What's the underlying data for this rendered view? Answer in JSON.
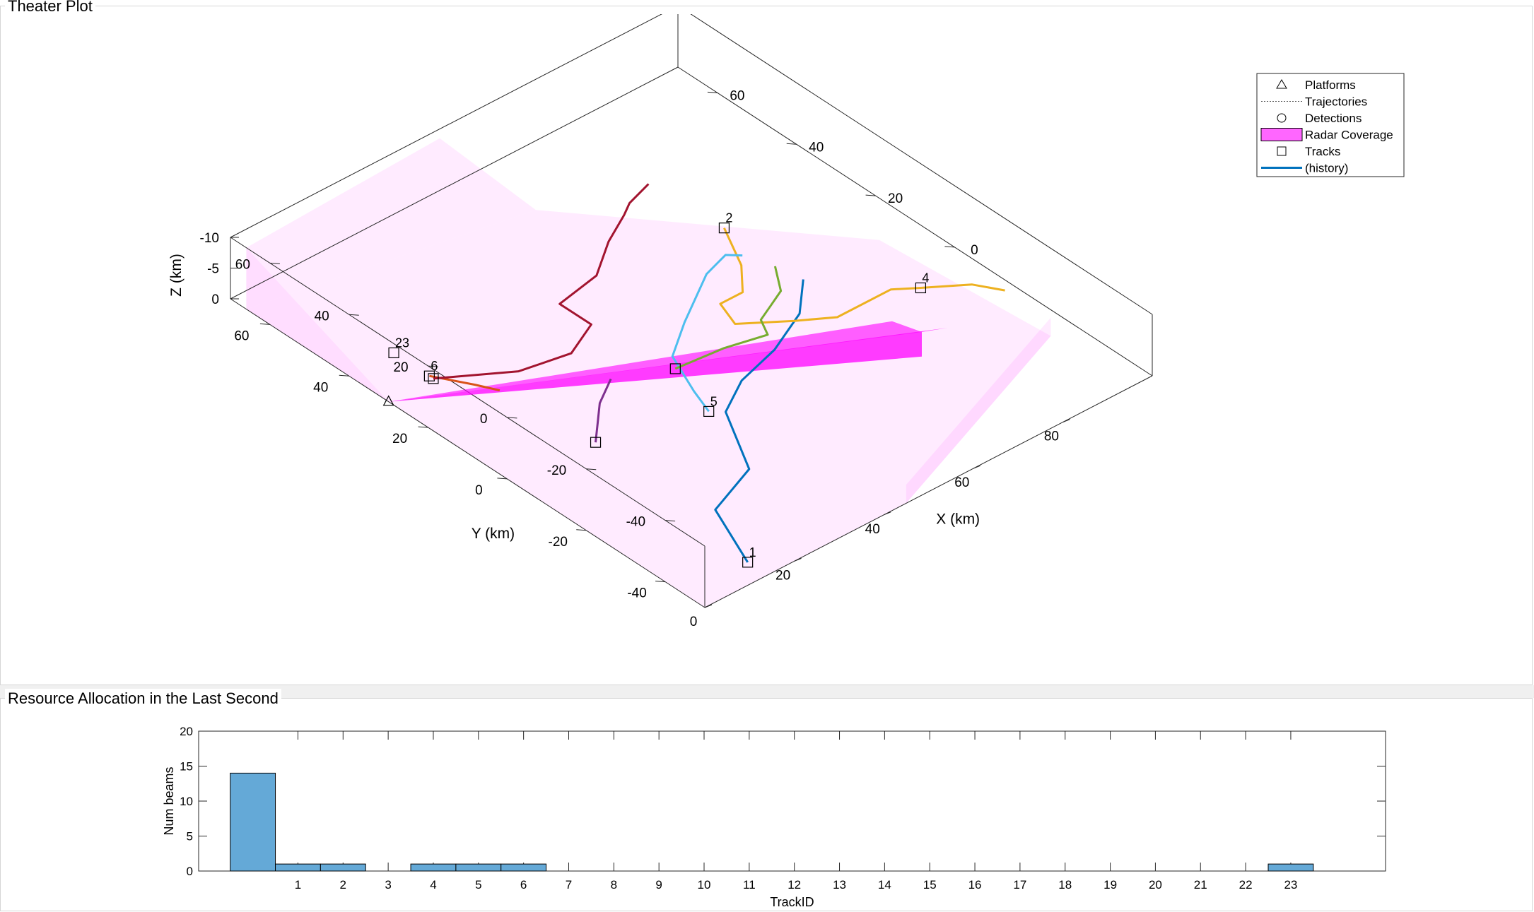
{
  "panels": {
    "theater_title": "Theater Plot",
    "resource_title": "Resource Allocation in the Last Second"
  },
  "colors": {
    "coverage_light": "#ff00ff",
    "coverage_beam": "#ff00ff",
    "bar_fill": "#64a9d7",
    "history": "#0072bd"
  },
  "chart_data": [
    {
      "type": "line",
      "title": "Theater Plot",
      "axes3d": {
        "xlabel": "X (km)",
        "ylabel": "Y (km)",
        "zlabel": "Z (km)",
        "xlim": [
          0,
          100
        ],
        "ylim": [
          -50,
          70
        ],
        "zlim": [
          -10,
          0
        ],
        "x_ticks": [
          0,
          20,
          40,
          60,
          80
        ],
        "y_ticks_front": [
          -40,
          -20,
          0,
          20,
          40,
          60
        ],
        "y_ticks_right": [
          0,
          20,
          40,
          60
        ],
        "y_ticks_back": [
          -40,
          -20,
          0,
          20,
          40,
          60
        ],
        "z_ticks": [
          -10,
          -5,
          0
        ],
        "grid": false
      },
      "legend": {
        "placement": "top-right",
        "entries": [
          {
            "label": "Platforms",
            "marker": "triangle"
          },
          {
            "label": "Trajectories",
            "marker": "dotted-line"
          },
          {
            "label": "Detections",
            "marker": "circle"
          },
          {
            "label": "Radar Coverage",
            "marker": "patch"
          },
          {
            "label": "Tracks",
            "marker": "square"
          },
          {
            "label": "(history)",
            "marker": "line"
          }
        ]
      },
      "radar": {
        "x": 0,
        "y": 30,
        "z": 0,
        "beam_end": {
          "x": 75,
          "y": -20
        }
      },
      "tracks": [
        {
          "id": "1",
          "color": "#0072bd",
          "points": [
            [
              14,
              -45
            ],
            [
              20,
              -30
            ],
            [
              32,
              -25
            ],
            [
              40,
              -10
            ],
            [
              48,
              -5
            ],
            [
              58,
              -2
            ],
            [
              68,
              3
            ],
            [
              75,
              10
            ]
          ],
          "head": [
            14,
            -45
          ]
        },
        {
          "id": "2",
          "color": "#edb120",
          "points": [
            [
              75,
              30
            ],
            [
              70,
              20
            ],
            [
              65,
              14
            ],
            [
              60,
              14
            ],
            [
              58,
              8
            ],
            [
              66,
              2
            ],
            [
              72,
              -2
            ],
            [
              84,
              -2
            ],
            [
              88,
              -5
            ],
            [
              95,
              -10
            ],
            [
              98,
              -15
            ]
          ],
          "head": [
            75,
            30
          ]
        },
        {
          "id": "4",
          "color": "#edb120",
          "points": [],
          "head": [
            88,
            -5
          ]
        },
        {
          "id": "5",
          "color": "#4dbeee",
          "points": [
            [
              38,
              -8
            ],
            [
              40,
              -2
            ],
            [
              44,
              8
            ],
            [
              52,
              14
            ],
            [
              58,
              18
            ],
            [
              64,
              22
            ],
            [
              70,
              24
            ],
            [
              72,
              22
            ]
          ],
          "head": [
            38,
            -8
          ]
        },
        {
          "id": "6",
          "color": "#d95319",
          "points": [
            [
              10,
              31
            ],
            [
              14,
              24
            ],
            [
              16,
              20
            ]
          ],
          "head": [
            10,
            31
          ]
        },
        {
          "id": "23",
          "color": "#d95319",
          "points": [],
          "head": [
            10,
            40
          ]
        },
        {
          "id": "",
          "color": "#a2142f",
          "points": [
            [
              10,
              30
            ],
            [
              22,
              22
            ],
            [
              32,
              20
            ],
            [
              40,
              24
            ],
            [
              40,
              32
            ],
            [
              50,
              34
            ],
            [
              58,
              40
            ],
            [
              65,
              44
            ],
            [
              68,
              46
            ],
            [
              74,
              48
            ]
          ],
          "head": [
            10,
            30
          ]
        },
        {
          "id": "",
          "color": "#77ac30",
          "points": [
            [
              42,
              5
            ],
            [
              52,
              4
            ],
            [
              60,
              2
            ],
            [
              62,
              6
            ],
            [
              66,
              8
            ],
            [
              70,
              10
            ],
            [
              74,
              16
            ]
          ],
          "head": [
            42,
            5
          ]
        },
        {
          "id": "",
          "color": "#7e2f8e",
          "points": [
            [
              18,
              -2
            ],
            [
              22,
              2
            ],
            [
              26,
              6
            ],
            [
              32,
              10
            ]
          ],
          "head": [
            18,
            -2
          ]
        }
      ]
    },
    {
      "type": "bar",
      "title": "Resource Allocation in the Last Second",
      "xlabel": "TrackID",
      "ylabel": "Num beams",
      "ylim": [
        0,
        20
      ],
      "yticks": [
        0,
        5,
        10,
        15,
        20
      ],
      "categories": [
        "",
        "1",
        "2",
        "3",
        "4",
        "5",
        "6",
        "7",
        "8",
        "9",
        "10",
        "11",
        "12",
        "13",
        "14",
        "15",
        "16",
        "17",
        "18",
        "19",
        "20",
        "21",
        "22",
        "23"
      ],
      "values": [
        14,
        1,
        1,
        0,
        1,
        1,
        1,
        0,
        0,
        0,
        0,
        0,
        0,
        0,
        0,
        0,
        0,
        0,
        0,
        0,
        0,
        0,
        0,
        1
      ]
    }
  ]
}
